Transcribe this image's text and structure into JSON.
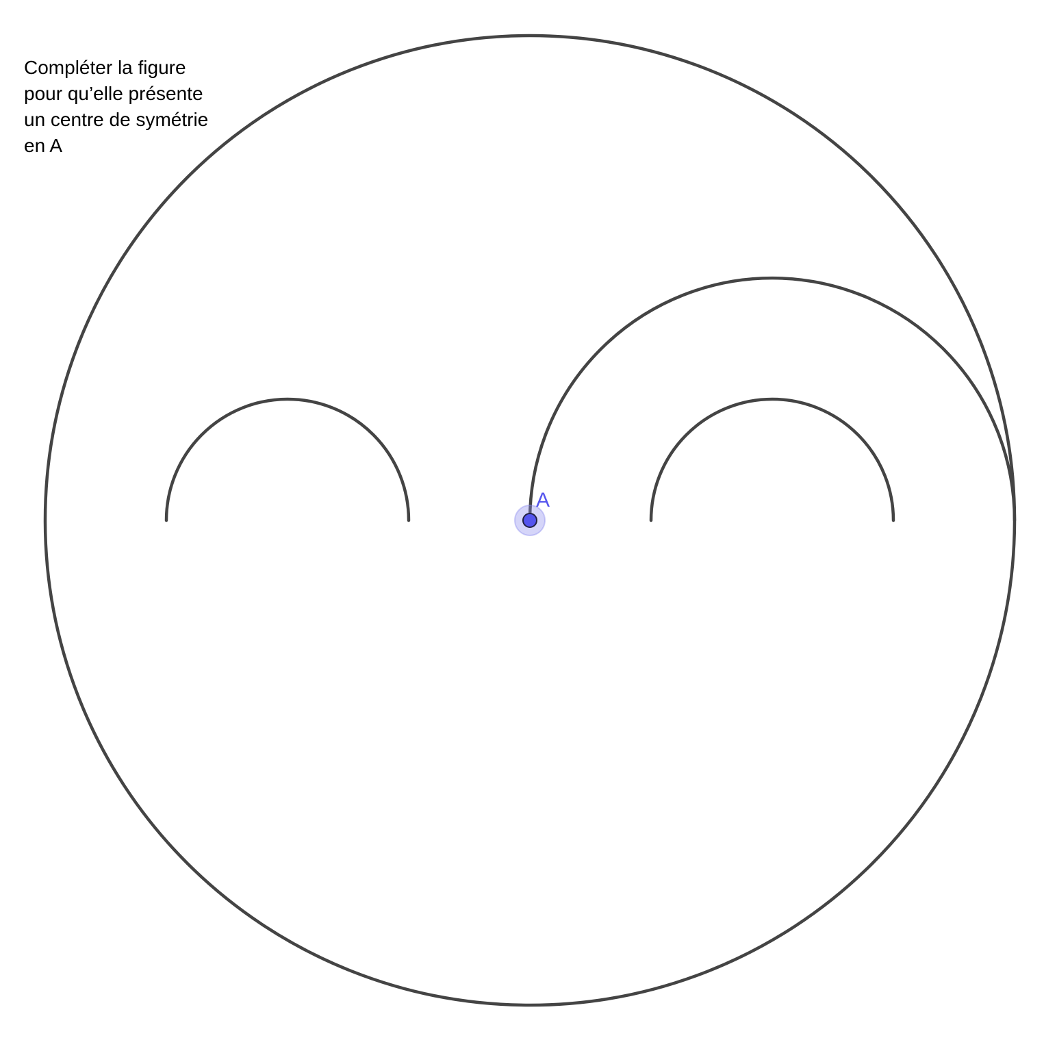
{
  "instruction": {
    "lines": [
      "Compléter la figure",
      "pour qu’elle présente",
      "un centre de symétrie",
      "en A"
    ]
  },
  "point_a": {
    "label": "A",
    "color": "#5555ee",
    "halo_color": "#8888ee"
  },
  "stroke_color": "#444444"
}
